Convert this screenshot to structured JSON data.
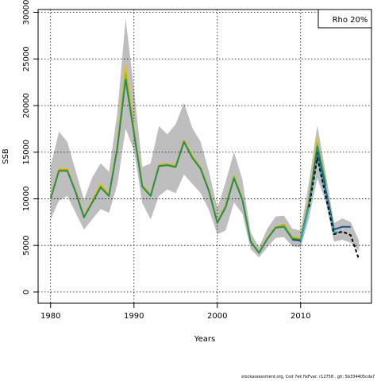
{
  "chart_data": {
    "type": "line",
    "title": "",
    "xlabel": "Years",
    "ylabel": "SSB",
    "xlim": [
      1978.5,
      2018.5
    ],
    "ylim": [
      -1200,
      30300
    ],
    "x_ticks": [
      1980,
      1990,
      2000,
      2010
    ],
    "x_tick_labels": [
      "1980",
      "1990",
      "2000",
      "2010"
    ],
    "y_ticks": [
      0,
      5000,
      10000,
      15000,
      20000,
      25000,
      30000
    ],
    "y_tick_labels": [
      "0",
      "5000",
      "10000",
      "15000",
      "20000",
      "25000",
      "30000"
    ],
    "grid": true,
    "legend": {
      "placement": "top-right",
      "entries": [
        "Rho 20%"
      ]
    },
    "band": {
      "x": [
        1980,
        1981,
        1982,
        1983,
        1984,
        1985,
        1986,
        1987,
        1988,
        1989,
        1990,
        1991,
        1992,
        1993,
        1994,
        1995,
        1996,
        1997,
        1998,
        1999,
        2000,
        2001,
        2002,
        2003,
        2004,
        2005,
        2006,
        2007,
        2008,
        2009,
        2010,
        2011,
        2012,
        2013,
        2014,
        2015,
        2016,
        2017
      ],
      "lower": [
        7800,
        9800,
        10300,
        8500,
        6700,
        7800,
        8900,
        8500,
        11500,
        17500,
        15200,
        9500,
        7800,
        10300,
        11000,
        10600,
        12600,
        11600,
        10600,
        8800,
        6200,
        6600,
        9600,
        8400,
        4600,
        3700,
        4800,
        5800,
        5900,
        4900,
        4800,
        7900,
        12200,
        9700,
        5400,
        5600,
        5300,
        4400
      ],
      "upper": [
        13500,
        17200,
        16100,
        13000,
        9900,
        12300,
        13800,
        12900,
        19200,
        29300,
        21800,
        13400,
        13800,
        17800,
        16900,
        18000,
        20300,
        17600,
        16100,
        12900,
        9000,
        11800,
        15000,
        12100,
        6400,
        4800,
        6800,
        8100,
        8200,
        6800,
        6600,
        11800,
        17900,
        12800,
        7400,
        7900,
        7500,
        5500
      ]
    },
    "series": [
      {
        "color": "#f0c000",
        "x": [
          1980,
          1981,
          1982,
          1983,
          1984,
          1985,
          1986,
          1987,
          1988,
          1989,
          1990,
          1991,
          1992,
          1993,
          1994,
          1995,
          1996,
          1997,
          1998,
          1999,
          2000,
          2001,
          2002,
          2003,
          2004,
          2005,
          2006,
          2007,
          2008,
          2009,
          2010,
          2011,
          2012
        ],
        "values": [
          10200,
          13200,
          13200,
          10900,
          8200,
          9800,
          11600,
          10500,
          15800,
          24300,
          17600,
          11500,
          10500,
          13700,
          13800,
          13600,
          16300,
          14600,
          13400,
          11000,
          7600,
          9300,
          12500,
          10100,
          5500,
          4300,
          5800,
          7000,
          7300,
          5900,
          5800,
          9900,
          16600
        ]
      },
      {
        "color": "#8cbf40",
        "x": [
          1980,
          1981,
          1982,
          1983,
          1984,
          1985,
          1986,
          1987,
          1988,
          1989,
          1990,
          1991,
          1992,
          1993,
          1994,
          1995,
          1996,
          1997,
          1998,
          1999,
          2000,
          2001,
          2002,
          2003,
          2004,
          2005,
          2006,
          2007,
          2008,
          2009,
          2010,
          2011,
          2012,
          2013
        ],
        "values": [
          10100,
          13100,
          13100,
          10800,
          8100,
          9700,
          11400,
          10400,
          15600,
          23500,
          17300,
          11400,
          10400,
          13600,
          13700,
          13500,
          16200,
          14500,
          13300,
          10900,
          7500,
          9200,
          12400,
          10000,
          5450,
          4250,
          5750,
          6950,
          7200,
          5850,
          5700,
          9700,
          16000,
          11800
        ]
      },
      {
        "color": "#2e8b57",
        "x": [
          1980,
          1981,
          1982,
          1983,
          1984,
          1985,
          1986,
          1987,
          1988,
          1989,
          1990,
          1991,
          1992,
          1993,
          1994,
          1995,
          1996,
          1997,
          1998,
          1999,
          2000,
          2001,
          2002,
          2003,
          2004,
          2005,
          2006,
          2007,
          2008,
          2009,
          2010,
          2011,
          2012,
          2013
        ],
        "values": [
          10000,
          13000,
          13000,
          10700,
          8000,
          9600,
          11200,
          10300,
          15400,
          22800,
          17000,
          11300,
          10300,
          13500,
          13600,
          13400,
          16100,
          14400,
          13200,
          10800,
          7400,
          9100,
          12200,
          9900,
          5400,
          4200,
          5700,
          6900,
          7000,
          5700,
          5600,
          9500,
          15600,
          11400
        ]
      },
      {
        "color": "#1a4f8a",
        "x": [
          2009,
          2010,
          2011,
          2012,
          2013,
          2014,
          2015,
          2016
        ],
        "values": [
          5600,
          5500,
          9300,
          15000,
          11000,
          6700,
          7000,
          7000
        ]
      },
      {
        "color": "#2aa9b8",
        "x": [
          2010,
          2011,
          2012,
          2013,
          2014,
          2015
        ],
        "values": [
          5500,
          9200,
          14600,
          10500,
          6400,
          6400
        ]
      },
      {
        "color": "#000000",
        "dashed": true,
        "x": [
          2011,
          2012,
          2013,
          2014,
          2015,
          2016,
          2017
        ],
        "values": [
          9100,
          14400,
          10300,
          6200,
          6500,
          6100,
          3500
        ]
      }
    ]
  },
  "footer_text": "stockassessment.org, Cod 7ek fixFvar, r12758 , git: 5b334405cda7"
}
